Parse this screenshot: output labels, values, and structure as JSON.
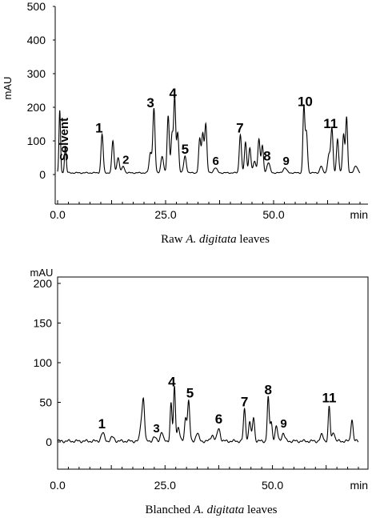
{
  "chart_data": [
    {
      "type": "line",
      "caption": {
        "before": "Raw ",
        "italic": "A. digitata",
        "after": " leaves"
      },
      "ylabel": "mAU",
      "xunit": "min",
      "ylim": [
        -40,
        500
      ],
      "xlim": [
        0,
        70
      ],
      "yticks": [
        "0",
        "100",
        "200",
        "300",
        "400",
        "500"
      ],
      "xticks": [
        "0.0",
        "25.0",
        "50.0"
      ],
      "baseline": 5,
      "peaks": [
        {
          "t": 0.5,
          "h": 185,
          "w": 0.18
        },
        {
          "t": 1.8,
          "h": 80,
          "w": 0.2
        },
        {
          "t": 10.3,
          "h": 115,
          "w": 0.25
        },
        {
          "t": 12.8,
          "h": 95,
          "w": 0.25
        },
        {
          "t": 14.0,
          "h": 45,
          "w": 0.3
        },
        {
          "t": 15.2,
          "h": 20,
          "w": 0.3
        },
        {
          "t": 21.5,
          "h": 60,
          "w": 0.3
        },
        {
          "t": 22.3,
          "h": 190,
          "w": 0.25
        },
        {
          "t": 24.2,
          "h": 50,
          "w": 0.3
        },
        {
          "t": 25.6,
          "h": 170,
          "w": 0.25
        },
        {
          "t": 26.5,
          "h": 115,
          "w": 0.25
        },
        {
          "t": 27.1,
          "h": 220,
          "w": 0.22
        },
        {
          "t": 27.8,
          "h": 120,
          "w": 0.25
        },
        {
          "t": 29.5,
          "h": 50,
          "w": 0.3
        },
        {
          "t": 32.9,
          "h": 100,
          "w": 0.25
        },
        {
          "t": 33.6,
          "h": 115,
          "w": 0.25
        },
        {
          "t": 34.3,
          "h": 145,
          "w": 0.25
        },
        {
          "t": 36.5,
          "h": 15,
          "w": 0.4
        },
        {
          "t": 42.3,
          "h": 115,
          "w": 0.25
        },
        {
          "t": 43.5,
          "h": 90,
          "w": 0.25
        },
        {
          "t": 44.5,
          "h": 75,
          "w": 0.25
        },
        {
          "t": 45.6,
          "h": 35,
          "w": 0.3
        },
        {
          "t": 46.6,
          "h": 100,
          "w": 0.25
        },
        {
          "t": 47.4,
          "h": 80,
          "w": 0.25
        },
        {
          "t": 48.8,
          "h": 30,
          "w": 0.35
        },
        {
          "t": 52.6,
          "h": 15,
          "w": 0.4
        },
        {
          "t": 57.0,
          "h": 195,
          "w": 0.22
        },
        {
          "t": 57.6,
          "h": 120,
          "w": 0.25
        },
        {
          "t": 61.0,
          "h": 20,
          "w": 0.3
        },
        {
          "t": 62.8,
          "h": 55,
          "w": 0.3
        },
        {
          "t": 63.5,
          "h": 130,
          "w": 0.25
        },
        {
          "t": 64.8,
          "h": 100,
          "w": 0.25
        },
        {
          "t": 66.2,
          "h": 115,
          "w": 0.25
        },
        {
          "t": 66.9,
          "h": 165,
          "w": 0.22
        },
        {
          "t": 69.0,
          "h": 20,
          "w": 0.4
        }
      ],
      "labels": [
        {
          "text": "Solvent",
          "t": 2.4,
          "y": 105,
          "rotate": true
        },
        {
          "text": "1",
          "t": 9.6,
          "y": 125
        },
        {
          "text": "2",
          "t": 15.8,
          "y": 32,
          "small": true
        },
        {
          "text": "3",
          "t": 21.5,
          "y": 200
        },
        {
          "text": "4",
          "t": 26.7,
          "y": 228
        },
        {
          "text": "5",
          "t": 29.5,
          "y": 62
        },
        {
          "text": "6",
          "t": 36.6,
          "y": 28,
          "small": true
        },
        {
          "text": "7",
          "t": 42.2,
          "y": 125
        },
        {
          "text": "8",
          "t": 48.5,
          "y": 42
        },
        {
          "text": "9",
          "t": 52.9,
          "y": 28,
          "small": true
        },
        {
          "text": "10",
          "t": 57.3,
          "y": 203
        },
        {
          "text": "11",
          "t": 63.2,
          "y": 138
        }
      ]
    },
    {
      "type": "line",
      "caption": {
        "before": "Blanched ",
        "italic": "A. digitata",
        "after": " leaves"
      },
      "ylabel": "mAU",
      "xunit": "min",
      "ylim": [
        -10,
        210
      ],
      "xlim": [
        0,
        70
      ],
      "yticks": [
        "0",
        "50",
        "100",
        "150",
        "200"
      ],
      "xticks": [
        "0.0",
        "25.0",
        "50.0"
      ],
      "baseline": 1,
      "peaks": [
        {
          "t": 10.5,
          "h": 10,
          "w": 0.4
        },
        {
          "t": 12.8,
          "h": 5,
          "w": 0.4
        },
        {
          "t": 19.5,
          "h": 25,
          "w": 0.3
        },
        {
          "t": 20.0,
          "h": 48,
          "w": 0.25
        },
        {
          "t": 22.5,
          "h": 5,
          "w": 0.35
        },
        {
          "t": 24.2,
          "h": 12,
          "w": 0.3
        },
        {
          "t": 26.4,
          "h": 48,
          "w": 0.22
        },
        {
          "t": 27.2,
          "h": 68,
          "w": 0.22
        },
        {
          "t": 28.1,
          "h": 18,
          "w": 0.3
        },
        {
          "t": 29.8,
          "h": 30,
          "w": 0.25
        },
        {
          "t": 30.5,
          "h": 50,
          "w": 0.25
        },
        {
          "t": 32.5,
          "h": 10,
          "w": 0.35
        },
        {
          "t": 36.0,
          "h": 8,
          "w": 0.35
        },
        {
          "t": 37.5,
          "h": 16,
          "w": 0.35
        },
        {
          "t": 43.5,
          "h": 40,
          "w": 0.25
        },
        {
          "t": 44.7,
          "h": 25,
          "w": 0.25
        },
        {
          "t": 45.6,
          "h": 30,
          "w": 0.25
        },
        {
          "t": 49.0,
          "h": 55,
          "w": 0.22
        },
        {
          "t": 49.7,
          "h": 25,
          "w": 0.25
        },
        {
          "t": 50.9,
          "h": 18,
          "w": 0.3
        },
        {
          "t": 52.5,
          "h": 10,
          "w": 0.35
        },
        {
          "t": 61.5,
          "h": 8,
          "w": 0.35
        },
        {
          "t": 63.2,
          "h": 43,
          "w": 0.22
        },
        {
          "t": 64.2,
          "h": 12,
          "w": 0.3
        },
        {
          "t": 68.5,
          "h": 28,
          "w": 0.25
        }
      ],
      "labels": [
        {
          "text": "1",
          "t": 10.3,
          "y": 17
        },
        {
          "text": "3",
          "t": 23.0,
          "y": 12,
          "small": true
        },
        {
          "text": "4",
          "t": 26.6,
          "y": 70
        },
        {
          "text": "5",
          "t": 30.8,
          "y": 56
        },
        {
          "text": "6",
          "t": 37.5,
          "y": 23
        },
        {
          "text": "7",
          "t": 43.5,
          "y": 45
        },
        {
          "text": "8",
          "t": 49.0,
          "y": 60
        },
        {
          "text": "9",
          "t": 52.6,
          "y": 18,
          "small": true
        },
        {
          "text": "11",
          "t": 63.2,
          "y": 50
        }
      ]
    }
  ]
}
